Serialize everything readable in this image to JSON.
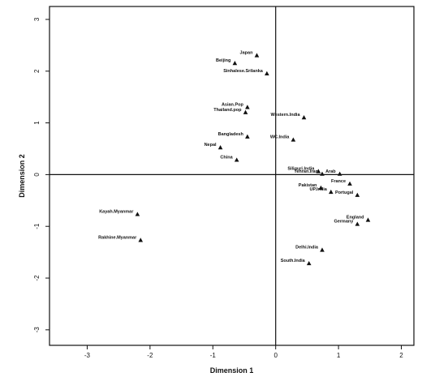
{
  "chart_data": {
    "type": "scatter",
    "title": "",
    "xlabel": "Dimension 1",
    "ylabel": "Dimension 2",
    "xlim": [
      -3.6,
      2.2
    ],
    "ylim": [
      -3.3,
      3.25
    ],
    "x_ticks": [
      "-3",
      "-2",
      "-1",
      "0",
      "1",
      "2"
    ],
    "y_ticks": [
      "3",
      "2",
      "1",
      "0",
      "-1",
      "-2",
      "-3"
    ],
    "x_tick_values": [
      -3,
      -2,
      -1,
      0,
      1,
      2
    ],
    "y_tick_values": [
      3,
      2,
      1,
      0,
      -1,
      -2,
      -3
    ],
    "reference_lines": {
      "x": 0,
      "y": 0
    },
    "grid": false,
    "marker": "triangle",
    "points": [
      {
        "label": "Japan",
        "x": -0.3,
        "y": 2.3
      },
      {
        "label": "Beijing",
        "x": -0.65,
        "y": 2.15
      },
      {
        "label": "Sinhalese.Srilanka",
        "x": -0.14,
        "y": 1.95
      },
      {
        "label": "Asian.Pop",
        "x": -0.45,
        "y": 1.3
      },
      {
        "label": "Thailand.pop",
        "x": -0.48,
        "y": 1.2
      },
      {
        "label": "Western.India",
        "x": 0.45,
        "y": 1.1
      },
      {
        "label": "Bangladesh",
        "x": -0.45,
        "y": 0.73
      },
      {
        "label": "WC.India",
        "x": 0.28,
        "y": 0.67
      },
      {
        "label": "Nepal",
        "x": -0.88,
        "y": 0.52
      },
      {
        "label": "China",
        "x": -0.62,
        "y": 0.28
      },
      {
        "label": "Siliguri.India",
        "x": 0.68,
        "y": 0.06
      },
      {
        "label": "Tehran.Iran",
        "x": 0.74,
        "y": 0.01
      },
      {
        "label": "Arab",
        "x": 1.02,
        "y": 0.01
      },
      {
        "label": "France",
        "x": 1.18,
        "y": -0.18
      },
      {
        "label": "Pakistan",
        "x": 0.72,
        "y": -0.26
      },
      {
        "label": "UP.India",
        "x": 0.88,
        "y": -0.34
      },
      {
        "label": "Portugal",
        "x": 1.3,
        "y": -0.4
      },
      {
        "label": "England",
        "x": 1.47,
        "y": -0.88
      },
      {
        "label": "Germany",
        "x": 1.3,
        "y": -0.96
      },
      {
        "label": "Kayah.Myanmar",
        "x": -2.2,
        "y": -0.77
      },
      {
        "label": "Rakhine.Myanmar",
        "x": -2.15,
        "y": -1.27
      },
      {
        "label": "Delhi.India",
        "x": 0.74,
        "y": -1.46
      },
      {
        "label": "South.India",
        "x": 0.53,
        "y": -1.72
      }
    ]
  }
}
